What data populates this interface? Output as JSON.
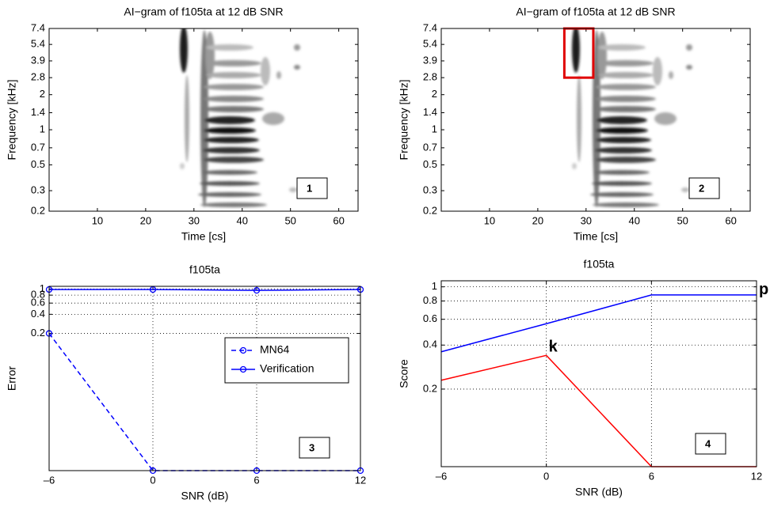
{
  "chart_data": [
    {
      "type": "image",
      "title": "AI−gram of f105ta at 12 dB SNR",
      "xlabel": "Time [cs]",
      "ylabel": "Frequency [kHz]",
      "xlim": [
        0,
        64
      ],
      "xticks": [
        10,
        20,
        30,
        40,
        50,
        60
      ],
      "ylim": [
        0.2,
        7.4
      ],
      "yscale": "log",
      "yticks": [
        0.2,
        0.3,
        0.5,
        0.7,
        1,
        1.4,
        2,
        2.8,
        3.9,
        5.4,
        7.4
      ],
      "panel_label": "1"
    },
    {
      "type": "image",
      "title": "AI−gram of f105ta at 12 dB SNR",
      "xlabel": "Time [cs]",
      "ylabel": "Frequency [kHz]",
      "xlim": [
        0,
        64
      ],
      "xticks": [
        10,
        20,
        30,
        40,
        50,
        60
      ],
      "ylim": [
        0.2,
        7.4
      ],
      "yscale": "log",
      "yticks": [
        0.2,
        0.3,
        0.5,
        0.7,
        1,
        1.4,
        2,
        2.8,
        3.9,
        5.4,
        7.4
      ],
      "highlight": {
        "x": [
          25.5,
          31.5
        ],
        "y": [
          2.8,
          7.4
        ],
        "color": "#e00000"
      },
      "panel_label": "2"
    },
    {
      "type": "line",
      "title": "f105ta",
      "xlabel": "SNR (dB)",
      "ylabel": "Error",
      "x": [
        -6,
        0,
        6,
        12
      ],
      "xlim": [
        -6,
        12
      ],
      "xticks": [
        {
          "value": -6,
          "label": "–6"
        },
        0,
        6,
        12
      ],
      "ylim": [
        0.0014,
        1.1
      ],
      "yscale": "log",
      "yticks": [
        0.2,
        0.4,
        0.6,
        0.8,
        1
      ],
      "grid": true,
      "legend": "right",
      "series": [
        {
          "name": "MN64",
          "color": "#0000ff",
          "linestyle": "dashed",
          "marker": "circle",
          "values": [
            0.2,
            0.0014,
            0.0014,
            0.0014
          ]
        },
        {
          "name": "Verification",
          "color": "#0000ff",
          "linestyle": "solid",
          "marker": "circle",
          "values": [
            0.98,
            0.98,
            0.95,
            0.98
          ]
        }
      ],
      "panel_label": "3"
    },
    {
      "type": "line",
      "title": "f105ta",
      "xlabel": "SNR (dB)",
      "ylabel": "Score",
      "x": [
        -6,
        0,
        6,
        12
      ],
      "xlim": [
        -6,
        12
      ],
      "xticks": [
        {
          "value": -6,
          "label": "–6"
        },
        0,
        6,
        12
      ],
      "ylim": [
        0.059,
        1.1
      ],
      "yscale": "log",
      "yticks": [
        0.2,
        0.4,
        0.6,
        0.8,
        1
      ],
      "grid": true,
      "series": [
        {
          "color": "#0000ff",
          "linestyle": "solid",
          "values": [
            0.36,
            0.56,
            0.88,
            0.88
          ]
        },
        {
          "color": "#ff0000",
          "linestyle": "solid",
          "values": [
            0.23,
            0.34,
            0.059,
            0.059
          ]
        }
      ],
      "annotations": [
        "p",
        "k"
      ],
      "panel_label": "4"
    }
  ]
}
